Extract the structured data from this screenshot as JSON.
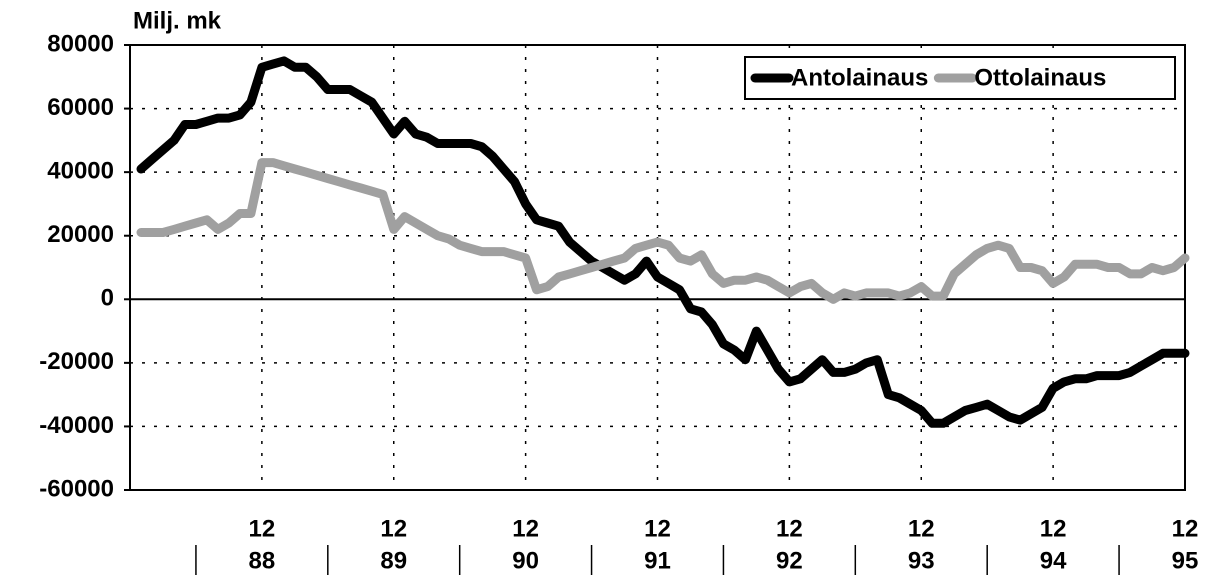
{
  "chart_data": {
    "type": "line",
    "ylabel": "Milj. mk",
    "categories": [
      null,
      null,
      null,
      null,
      null,
      null,
      null,
      null,
      null,
      null,
      null,
      "12",
      null,
      null,
      null,
      null,
      null,
      null,
      null,
      null,
      null,
      null,
      null,
      "12",
      null,
      null,
      null,
      null,
      null,
      null,
      null,
      null,
      null,
      null,
      null,
      "12",
      null,
      null,
      null,
      null,
      null,
      null,
      null,
      null,
      null,
      null,
      null,
      "12",
      null,
      null,
      null,
      null,
      null,
      null,
      null,
      null,
      null,
      null,
      null,
      "12",
      null,
      null,
      null,
      null,
      null,
      null,
      null,
      null,
      null,
      null,
      null,
      "12",
      null,
      null,
      null,
      null,
      null,
      null,
      null,
      null,
      null,
      null,
      null,
      "12",
      null,
      null,
      null,
      null,
      null,
      null,
      null,
      null,
      null,
      null,
      null,
      "12"
    ],
    "years": [
      "88",
      "89",
      "90",
      "91",
      "92",
      "93",
      "94",
      "95"
    ],
    "series": [
      {
        "name": "Antolainaus",
        "color": "#000000",
        "values": [
          41000,
          44000,
          47000,
          50000,
          55000,
          55000,
          56000,
          57000,
          57000,
          58000,
          62000,
          73000,
          74000,
          75000,
          73000,
          73000,
          70000,
          66000,
          66000,
          66000,
          64000,
          62000,
          57000,
          52000,
          56000,
          52000,
          51000,
          49000,
          49000,
          49000,
          49000,
          48000,
          45000,
          41000,
          37000,
          30000,
          25000,
          24000,
          23000,
          18000,
          15000,
          12000,
          10000,
          8000,
          6000,
          8000,
          12000,
          7000,
          5000,
          3000,
          -3000,
          -4000,
          -8000,
          -14000,
          -16000,
          -19000,
          -10000,
          -16000,
          -22000,
          -26000,
          -25000,
          -22000,
          -19000,
          -23000,
          -23000,
          -22000,
          -20000,
          -19000,
          -30000,
          -31000,
          -33000,
          -35000,
          -39000,
          -39000,
          -37000,
          -35000,
          -34000,
          -33000,
          -35000,
          -37000,
          -38000,
          -36000,
          -34000,
          -28000,
          -26000,
          -25000,
          -25000,
          -24000,
          -24000,
          -24000,
          -23000,
          -21000,
          -19000,
          -17000,
          -17000,
          -17000
        ]
      },
      {
        "name": "Ottolainaus",
        "color": "#a0a0a0",
        "values": [
          21000,
          21000,
          21000,
          22000,
          23000,
          24000,
          25000,
          22000,
          24000,
          27000,
          27000,
          43000,
          43000,
          42000,
          41000,
          40000,
          39000,
          38000,
          37000,
          36000,
          35000,
          34000,
          33000,
          22000,
          26000,
          24000,
          22000,
          20000,
          19000,
          17000,
          16000,
          15000,
          15000,
          15000,
          14000,
          13000,
          3000,
          4000,
          7000,
          8000,
          9000,
          10000,
          11000,
          12000,
          13000,
          16000,
          17000,
          18000,
          17000,
          13000,
          12000,
          14000,
          8000,
          5000,
          6000,
          6000,
          7000,
          6000,
          4000,
          2000,
          4000,
          5000,
          2000,
          0,
          2000,
          1000,
          2000,
          2000,
          2000,
          1000,
          2000,
          4000,
          1000,
          1000,
          8000,
          11000,
          14000,
          16000,
          17000,
          16000,
          10000,
          10000,
          9000,
          5000,
          7000,
          11000,
          11000,
          11000,
          10000,
          10000,
          8000,
          8000,
          10000,
          9000,
          10000,
          13000
        ]
      }
    ],
    "ylim": [
      -60000,
      80000
    ],
    "yticks": [
      -60000,
      -40000,
      -20000,
      0,
      20000,
      40000,
      60000,
      80000
    ],
    "grid": true,
    "legend": "upper right"
  }
}
